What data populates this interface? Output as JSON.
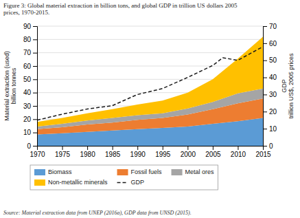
{
  "chart_data": {
    "type": "area",
    "title": "Figure 3: Global material extraction in billion tons, and global GDP in trillion US dollars 2005\nprices, 1970-2015.",
    "annotations": [
      "Source: Material extraction data from UNEP (2016a), GDP data from UNSD (2015)."
    ],
    "ylabel": "Material extraction (used)\nbillion tonnes",
    "y2label": "GDP\ntrillion US$, 2005 prices",
    "stacked": true,
    "grid": true,
    "legend": "bottom",
    "x": [
      1970,
      1975,
      1980,
      1985,
      1990,
      1995,
      2000,
      2005,
      2010,
      2015
    ],
    "xlim": [
      1970,
      2015
    ],
    "xticks": [
      1970,
      1975,
      1980,
      1985,
      1990,
      1995,
      2000,
      2005,
      2010,
      2015
    ],
    "ylim": [
      0,
      90
    ],
    "yticks": [
      0,
      10,
      20,
      30,
      40,
      50,
      60,
      70,
      80,
      90
    ],
    "y2lim": [
      0,
      70
    ],
    "y2ticks": [
      0,
      10,
      20,
      30,
      40,
      50,
      60,
      70
    ],
    "series": [
      {
        "name": "Biomass",
        "type": "area",
        "color": "#5b9bd5",
        "values": [
          8.5,
          9.5,
          10.5,
          11.5,
          12.5,
          13.5,
          14.5,
          16.5,
          18.5,
          21.0
        ]
      },
      {
        "name": "Fossil fuels",
        "type": "area",
        "color": "#ed7d31",
        "values": [
          4.0,
          4.5,
          5.5,
          6.0,
          7.0,
          7.5,
          9.0,
          11.0,
          13.5,
          14.5
        ]
      },
      {
        "name": "Metal ores",
        "type": "area",
        "color": "#a5a5a5",
        "values": [
          2.0,
          2.5,
          3.0,
          3.5,
          3.5,
          3.5,
          4.5,
          5.5,
          7.5,
          7.5
        ]
      },
      {
        "name": "Non-metallic minerals",
        "type": "area",
        "color": "#ffc000",
        "values": [
          3.5,
          4.5,
          5.5,
          6.5,
          8.0,
          9.5,
          12.0,
          17.0,
          26.0,
          39.0
        ]
      },
      {
        "name": "GDP",
        "type": "line",
        "axis": "y2",
        "line_style": "dashed",
        "color": "#1a1a1a",
        "x": [
          1970,
          1975,
          1980,
          1985,
          1990,
          1995,
          2000,
          2005,
          2007,
          2010,
          2015
        ],
        "values": [
          15.0,
          18.5,
          21.5,
          23.5,
          30.0,
          33.5,
          40.0,
          47.0,
          51.5,
          50.0,
          58.0
        ]
      }
    ]
  }
}
